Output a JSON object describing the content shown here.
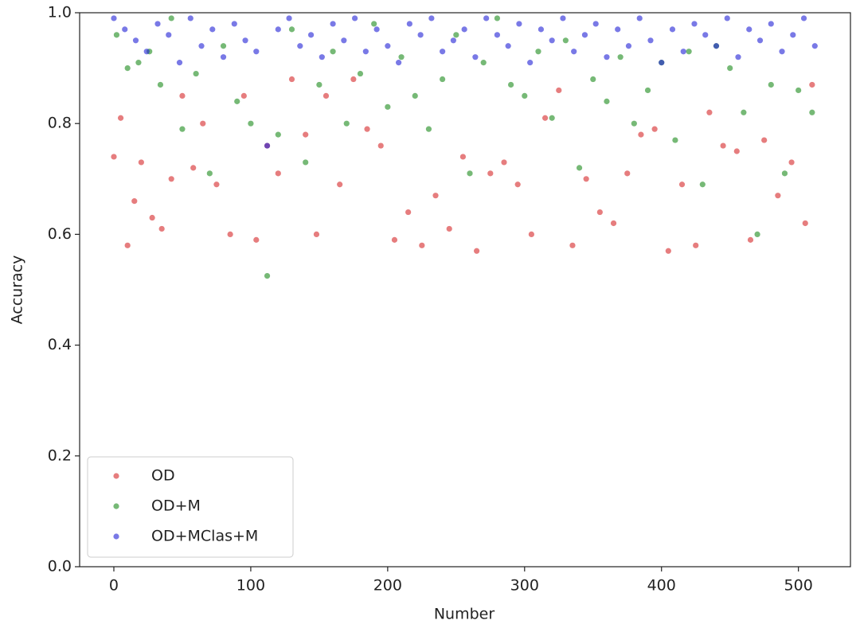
{
  "chart_data": {
    "type": "scatter",
    "xlabel": "Number",
    "ylabel": "Accuracy",
    "xlim": [
      -25,
      538
    ],
    "ylim": [
      0,
      1
    ],
    "xticks": [
      0,
      100,
      200,
      300,
      400,
      500
    ],
    "yticks": [
      {
        "value": 0,
        "label": "0.0"
      },
      0.2,
      0.4,
      0.6,
      0.8,
      {
        "value": 1,
        "label": "1.0"
      }
    ],
    "legend": "lower left",
    "series": [
      {
        "name": "OD",
        "color": "#d62728",
        "x": [
          0,
          5,
          10,
          15,
          20,
          28,
          35,
          42,
          50,
          58,
          65,
          75,
          85,
          95,
          104,
          112,
          120,
          130,
          140,
          148,
          155,
          165,
          175,
          185,
          195,
          205,
          215,
          225,
          235,
          245,
          255,
          265,
          275,
          285,
          295,
          305,
          315,
          325,
          335,
          345,
          355,
          365,
          375,
          385,
          395,
          405,
          415,
          425,
          435,
          445,
          455,
          465,
          475,
          485,
          495,
          505,
          510
        ],
        "values": [
          0.74,
          0.81,
          0.58,
          0.66,
          0.73,
          0.63,
          0.61,
          0.7,
          0.85,
          0.72,
          0.8,
          0.69,
          0.6,
          0.85,
          0.59,
          0.76,
          0.71,
          0.88,
          0.78,
          0.6,
          0.85,
          0.69,
          0.88,
          0.79,
          0.76,
          0.59,
          0.64,
          0.58,
          0.67,
          0.61,
          0.74,
          0.57,
          0.71,
          0.73,
          0.69,
          0.6,
          0.81,
          0.86,
          0.58,
          0.7,
          0.64,
          0.62,
          0.71,
          0.78,
          0.79,
          0.57,
          0.69,
          0.58,
          0.82,
          0.76,
          0.75,
          0.59,
          0.77,
          0.67,
          0.73,
          0.62,
          0.87
        ]
      },
      {
        "name": "OD+M",
        "color": "#1a8a1a",
        "x": [
          2,
          10,
          18,
          26,
          34,
          42,
          50,
          60,
          70,
          80,
          90,
          100,
          112,
          120,
          130,
          140,
          150,
          160,
          170,
          180,
          190,
          200,
          210,
          220,
          230,
          240,
          250,
          260,
          270,
          280,
          290,
          300,
          310,
          320,
          330,
          340,
          350,
          360,
          370,
          380,
          390,
          400,
          410,
          420,
          430,
          440,
          450,
          460,
          470,
          480,
          490,
          500,
          510
        ],
        "values": [
          0.96,
          0.9,
          0.91,
          0.93,
          0.87,
          0.99,
          0.79,
          0.89,
          0.71,
          0.94,
          0.84,
          0.8,
          0.525,
          0.78,
          0.97,
          0.73,
          0.87,
          0.93,
          0.8,
          0.89,
          0.98,
          0.83,
          0.92,
          0.85,
          0.79,
          0.88,
          0.96,
          0.71,
          0.91,
          0.99,
          0.87,
          0.85,
          0.93,
          0.81,
          0.95,
          0.72,
          0.88,
          0.84,
          0.92,
          0.8,
          0.86,
          0.91,
          0.77,
          0.93,
          0.69,
          0.94,
          0.9,
          0.82,
          0.6,
          0.87,
          0.71,
          0.86,
          0.82
        ]
      },
      {
        "name": "OD+MClas+M",
        "color": "#1f1fd6",
        "x": [
          0,
          8,
          16,
          24,
          32,
          40,
          48,
          56,
          64,
          72,
          80,
          88,
          96,
          104,
          112,
          120,
          128,
          136,
          144,
          152,
          160,
          168,
          176,
          184,
          192,
          200,
          208,
          216,
          224,
          232,
          240,
          248,
          256,
          264,
          272,
          280,
          288,
          296,
          304,
          312,
          320,
          328,
          336,
          344,
          352,
          360,
          368,
          376,
          384,
          392,
          400,
          408,
          416,
          424,
          432,
          440,
          448,
          456,
          464,
          472,
          480,
          488,
          496,
          504,
          512
        ],
        "values": [
          0.99,
          0.97,
          0.95,
          0.93,
          0.98,
          0.96,
          0.91,
          0.99,
          0.94,
          0.97,
          0.92,
          0.98,
          0.95,
          0.93,
          0.76,
          0.97,
          0.99,
          0.94,
          0.96,
          0.92,
          0.98,
          0.95,
          0.99,
          0.93,
          0.97,
          0.94,
          0.91,
          0.98,
          0.96,
          0.99,
          0.93,
          0.95,
          0.97,
          0.92,
          0.99,
          0.96,
          0.94,
          0.98,
          0.91,
          0.97,
          0.95,
          0.99,
          0.93,
          0.96,
          0.98,
          0.92,
          0.97,
          0.94,
          0.99,
          0.95,
          0.91,
          0.97,
          0.93,
          0.98,
          0.96,
          0.94,
          0.99,
          0.92,
          0.97,
          0.95,
          0.98,
          0.93,
          0.96,
          0.99,
          0.94
        ]
      }
    ]
  }
}
